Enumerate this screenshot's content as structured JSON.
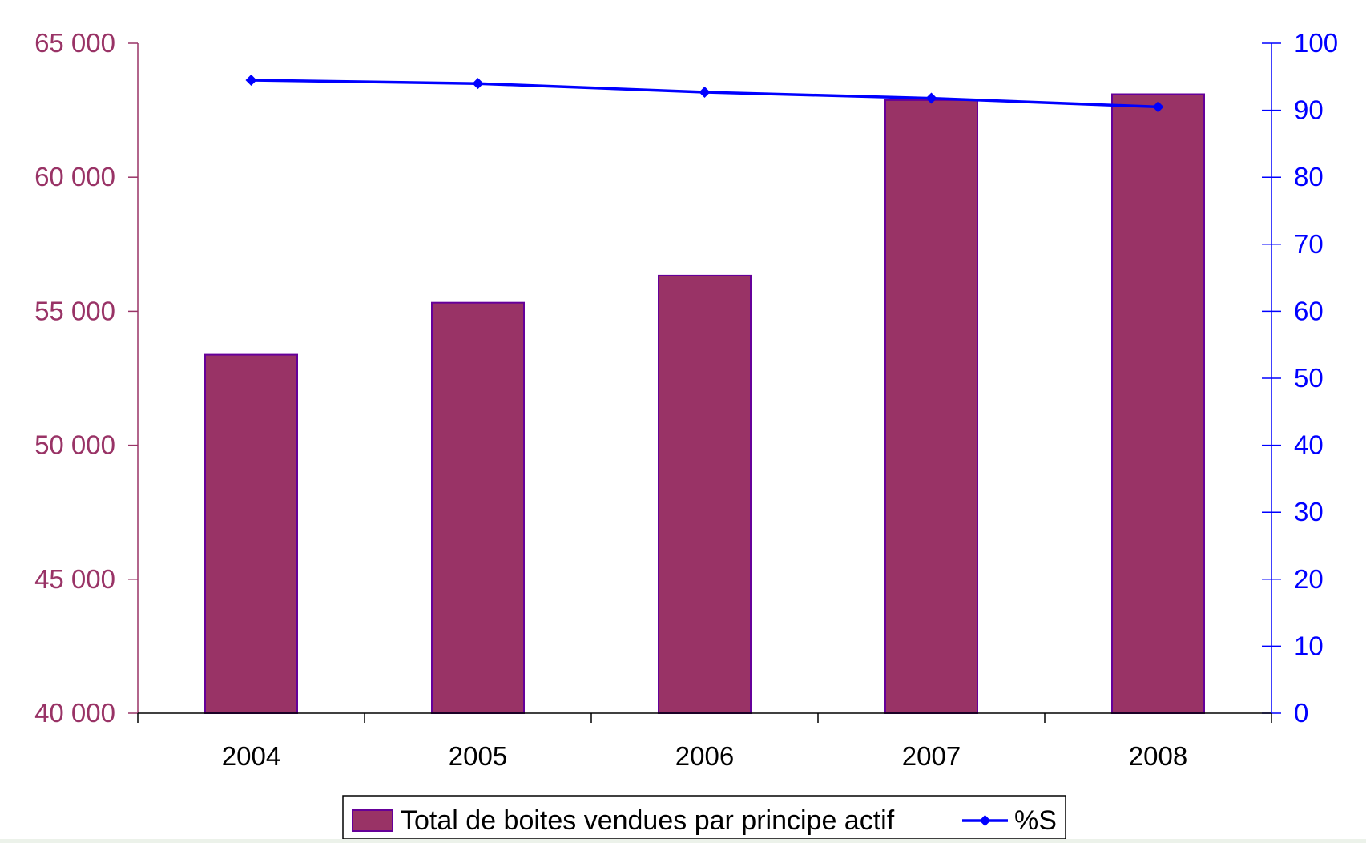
{
  "colors": {
    "background": "#ecf2ea",
    "plot_background": "#ffffff",
    "bar_fill": "#993366",
    "bar_stroke": "#660099",
    "left_axis": "#993366",
    "right_axis": "#0000ff",
    "line": "#0000ff",
    "text": "#000000"
  },
  "chart_data": {
    "type": "bar",
    "title": "",
    "xlabel": "",
    "ylabel": "",
    "categories": [
      "2004",
      "2005",
      "2006",
      "2007",
      "2008"
    ],
    "series": [
      {
        "name": "Total de boites vendues par principe actif",
        "type": "bar",
        "axis": "left",
        "values": [
          53380,
          55320,
          56330,
          62880,
          63100
        ]
      },
      {
        "name": "%S",
        "type": "line",
        "axis": "right",
        "values": [
          94.5,
          94.0,
          92.7,
          91.8,
          90.5
        ]
      }
    ],
    "ylim": [
      40000,
      65000
    ],
    "y_ticks": [
      40000,
      45000,
      50000,
      55000,
      60000,
      65000
    ],
    "y_tick_labels": [
      "40 000",
      "45 000",
      "50 000",
      "55 000",
      "60 000",
      "65 000"
    ],
    "y2lim": [
      0,
      100
    ],
    "y2_ticks": [
      0,
      10,
      20,
      30,
      40,
      50,
      60,
      70,
      80,
      90,
      100
    ],
    "y2_tick_labels": [
      "0",
      "10",
      "20",
      "30",
      "40",
      "50",
      "60",
      "70",
      "80",
      "90",
      "100"
    ],
    "grid": false,
    "legend_position": "bottom"
  }
}
